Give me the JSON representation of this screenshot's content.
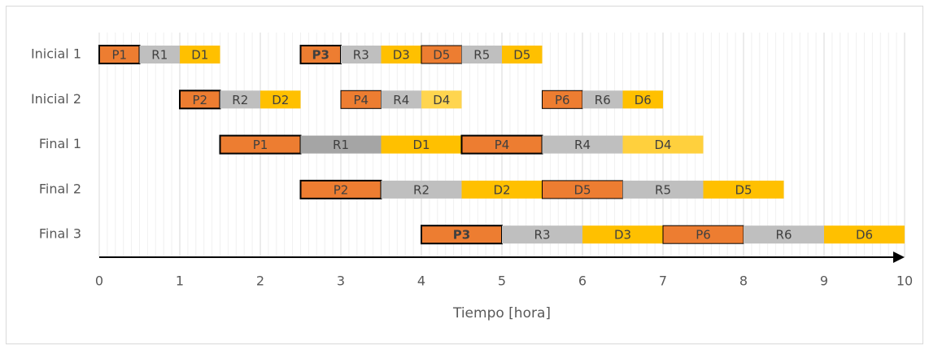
{
  "chart_data": {
    "type": "gantt",
    "xlabel": "Tiempo [hora]",
    "xlim": [
      0,
      10
    ],
    "xticks": [
      0,
      1,
      2,
      3,
      4,
      5,
      6,
      7,
      8,
      9,
      10
    ],
    "minor_grid": true,
    "categories": [
      "Inicial 1",
      "Inicial 2",
      "Final 1",
      "Final 2",
      "Final 3"
    ],
    "series": [
      {
        "name": "Inicial 1",
        "tasks": [
          {
            "label": "P1",
            "start": 0,
            "end": 0.5,
            "color": "#ed7d31",
            "border": 2
          },
          {
            "label": "R1",
            "start": 0.5,
            "end": 1,
            "color": "#bfbfbf"
          },
          {
            "label": "D1",
            "start": 1,
            "end": 1.5,
            "color": "#ffc000"
          },
          {
            "label": "P3",
            "start": 2.5,
            "end": 3,
            "color": "#ed7d31",
            "border": 2,
            "bold": true
          },
          {
            "label": "R3",
            "start": 3,
            "end": 3.5,
            "color": "#bfbfbf"
          },
          {
            "label": "D3",
            "start": 3.5,
            "end": 4,
            "color": "#ffc000"
          },
          {
            "label": "D5",
            "start": 4,
            "end": 4.5,
            "color": "#ed7d31",
            "border": 1
          },
          {
            "label": "R5",
            "start": 4.5,
            "end": 5,
            "color": "#bfbfbf"
          },
          {
            "label": "D5",
            "start": 5,
            "end": 5.5,
            "color": "#ffc000"
          }
        ]
      },
      {
        "name": "Inicial 2",
        "tasks": [
          {
            "label": "P2",
            "start": 1,
            "end": 1.5,
            "color": "#ed7d31",
            "border": 2
          },
          {
            "label": "R2",
            "start": 1.5,
            "end": 2,
            "color": "#bfbfbf"
          },
          {
            "label": "D2",
            "start": 2,
            "end": 2.5,
            "color": "#ffc000"
          },
          {
            "label": "P4",
            "start": 3,
            "end": 3.5,
            "color": "#ed7d31",
            "border": 1
          },
          {
            "label": "R4",
            "start": 3.5,
            "end": 4,
            "color": "#bfbfbf"
          },
          {
            "label": "D4",
            "start": 4,
            "end": 4.5,
            "color": "#ffd54f"
          },
          {
            "label": "P6",
            "start": 5.5,
            "end": 6,
            "color": "#ed7d31",
            "border": 1
          },
          {
            "label": "R6",
            "start": 6,
            "end": 6.5,
            "color": "#bfbfbf"
          },
          {
            "label": "D6",
            "start": 6.5,
            "end": 7,
            "color": "#ffc000"
          }
        ]
      },
      {
        "name": "Final 1",
        "tasks": [
          {
            "label": "P1",
            "start": 1.5,
            "end": 2.5,
            "color": "#ed7d31",
            "border": 2
          },
          {
            "label": "R1",
            "start": 2.5,
            "end": 3.5,
            "color": "#a5a5a5"
          },
          {
            "label": "D1",
            "start": 3.5,
            "end": 4.5,
            "color": "#ffc000"
          },
          {
            "label": "P4",
            "start": 4.5,
            "end": 5.5,
            "color": "#ed7d31",
            "border": 2
          },
          {
            "label": "R4",
            "start": 5.5,
            "end": 6.5,
            "color": "#bfbfbf"
          },
          {
            "label": "D4",
            "start": 6.5,
            "end": 7.5,
            "color": "#ffd03d"
          }
        ]
      },
      {
        "name": "Final 2",
        "tasks": [
          {
            "label": "P2",
            "start": 2.5,
            "end": 3.5,
            "color": "#ed7d31",
            "border": 2
          },
          {
            "label": "R2",
            "start": 3.5,
            "end": 4.5,
            "color": "#bfbfbf"
          },
          {
            "label": "D2",
            "start": 4.5,
            "end": 5.5,
            "color": "#ffc000"
          },
          {
            "label": "D5",
            "start": 5.5,
            "end": 6.5,
            "color": "#ed7d31",
            "border": 1
          },
          {
            "label": "R5",
            "start": 6.5,
            "end": 7.5,
            "color": "#bfbfbf"
          },
          {
            "label": "D5",
            "start": 7.5,
            "end": 8.5,
            "color": "#ffc000"
          }
        ]
      },
      {
        "name": "Final 3",
        "tasks": [
          {
            "label": "P3",
            "start": 4,
            "end": 5,
            "color": "#ed7d31",
            "border": 2,
            "bold": true
          },
          {
            "label": "R3",
            "start": 5,
            "end": 6,
            "color": "#bfbfbf"
          },
          {
            "label": "D3",
            "start": 6,
            "end": 7,
            "color": "#ffc000"
          },
          {
            "label": "P6",
            "start": 7,
            "end": 8,
            "color": "#ed7d31",
            "border": 1
          },
          {
            "label": "R6",
            "start": 8,
            "end": 9,
            "color": "#bfbfbf"
          },
          {
            "label": "D6",
            "start": 9,
            "end": 10,
            "color": "#ffc000"
          }
        ]
      }
    ]
  }
}
